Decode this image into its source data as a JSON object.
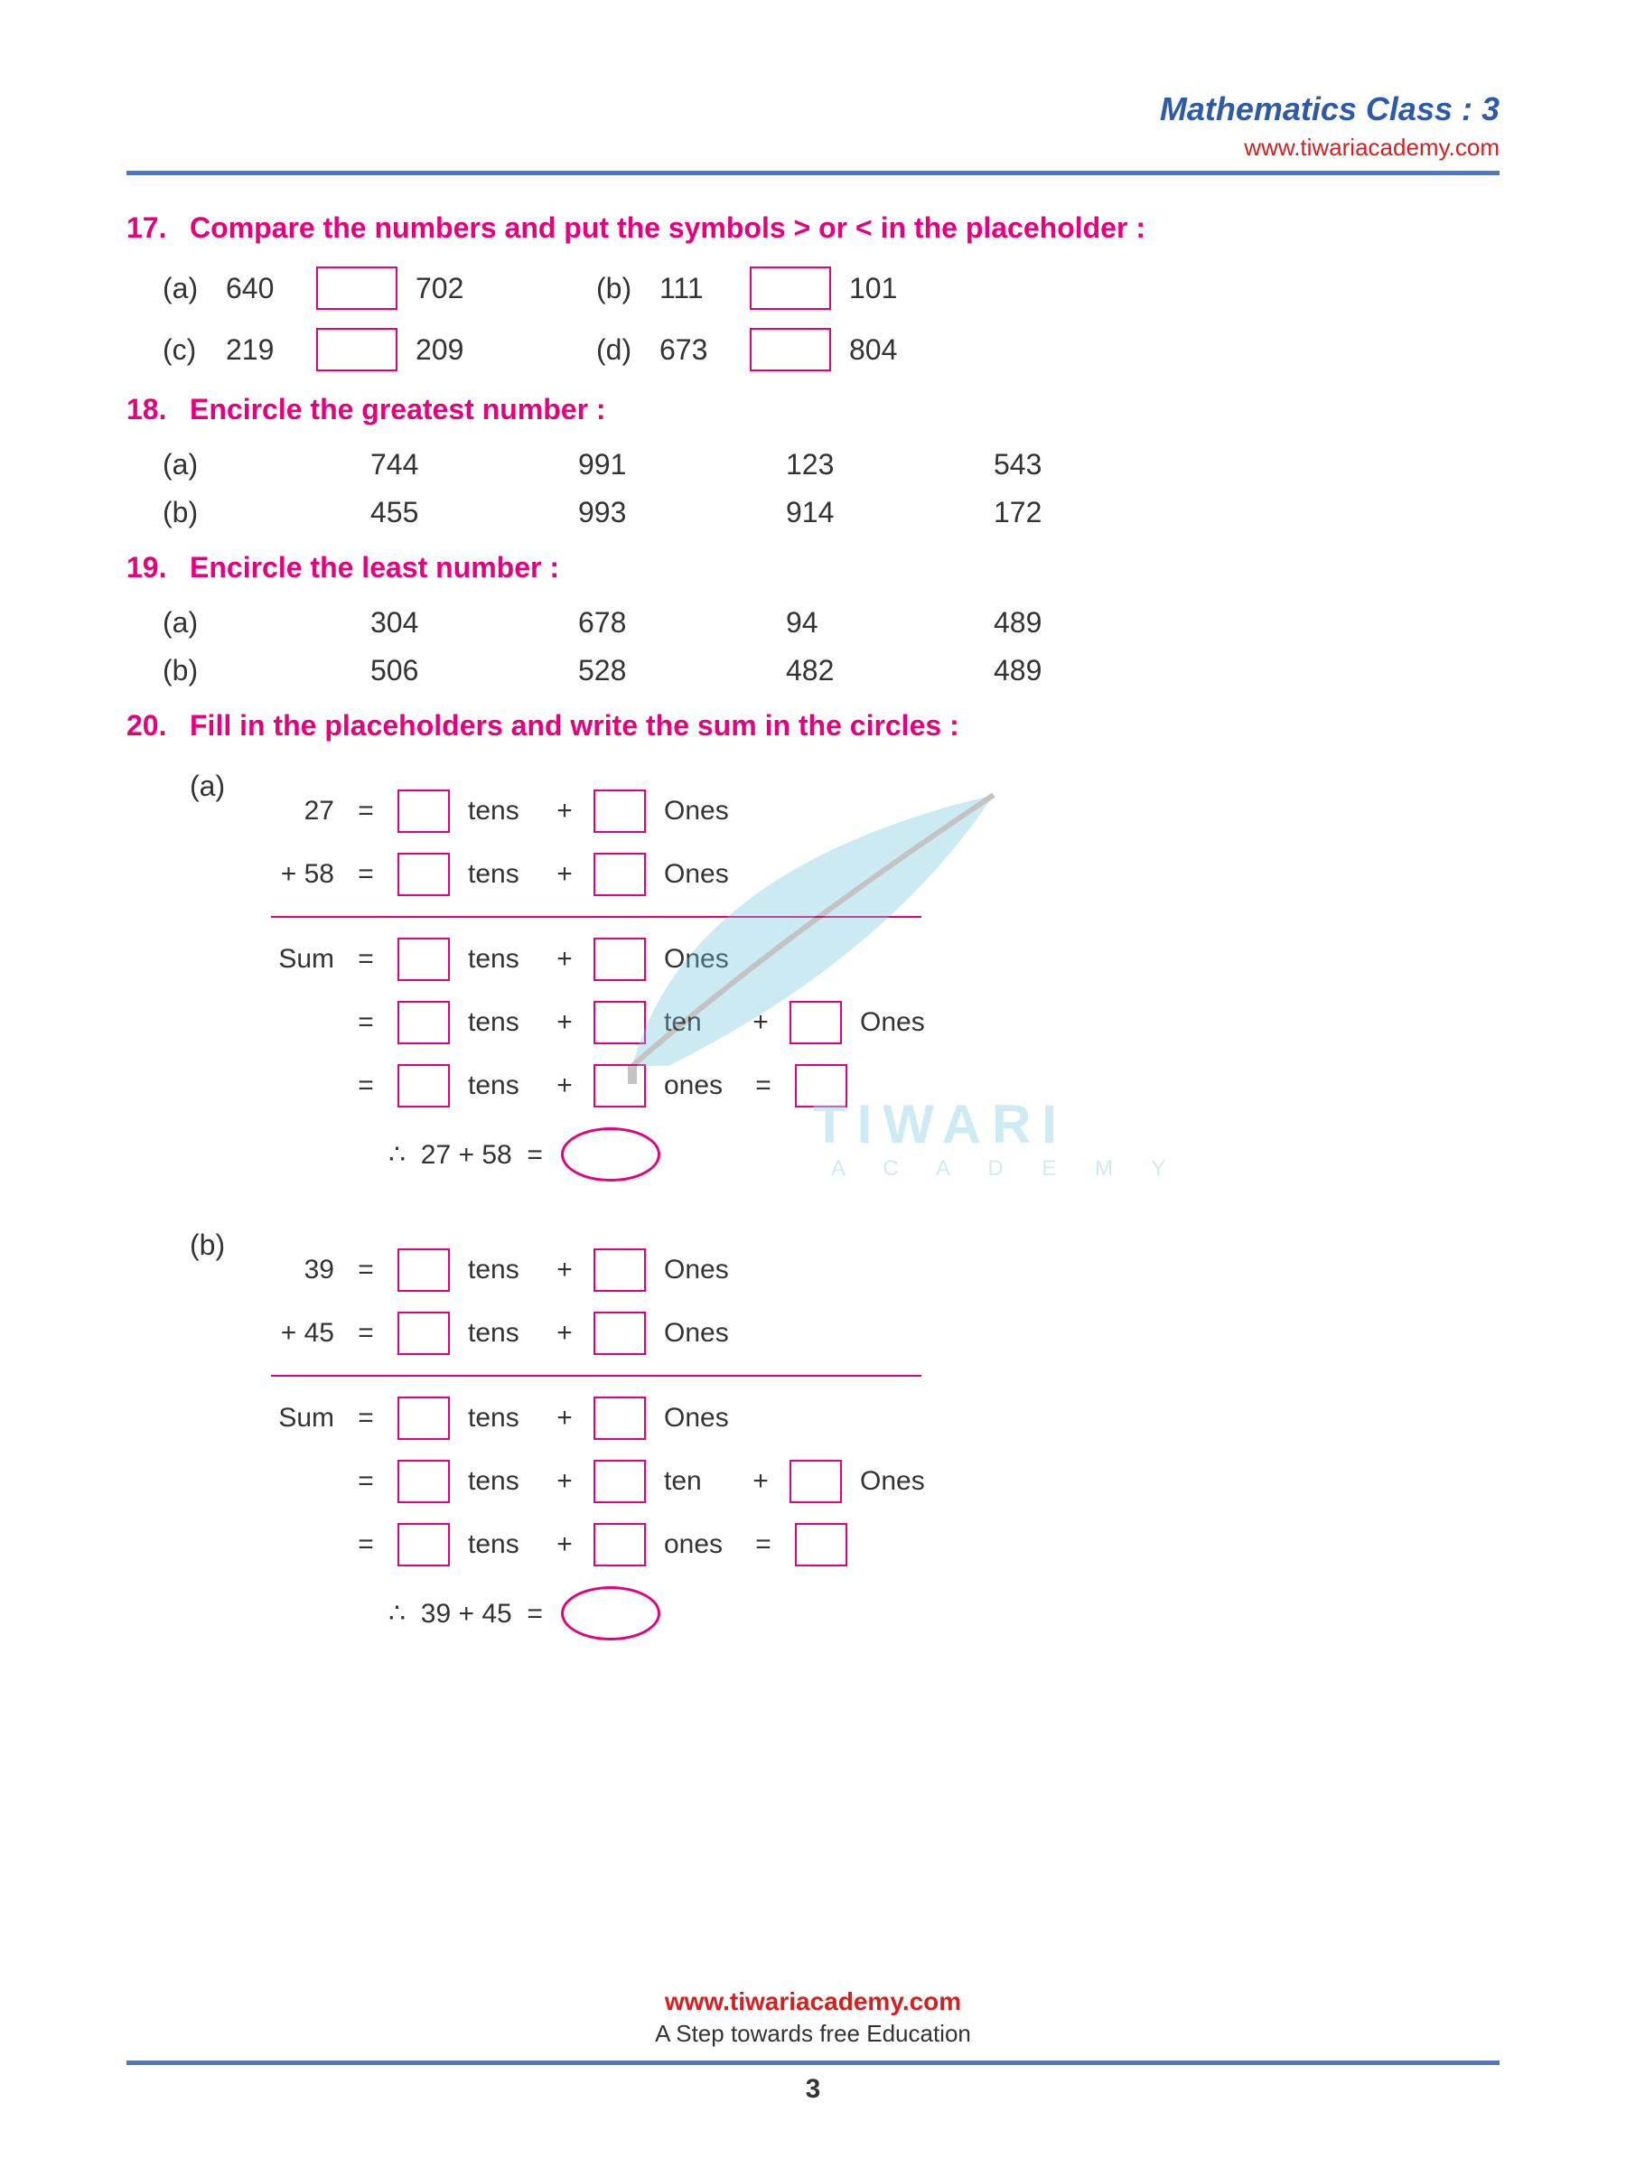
{
  "header": {
    "title": "Mathematics Class : 3",
    "link": "www.tiwariacademy.com"
  },
  "colors": {
    "accent": "#e6007e",
    "header_blue": "#2e5aa8",
    "rule_blue": "#4a7ac7",
    "red": "#d42020"
  },
  "q17": {
    "num": "17.",
    "title": "Compare the numbers and  put the symbols > or < in the placeholder :",
    "items": [
      {
        "label": "(a)",
        "n1": "640",
        "n2": "702"
      },
      {
        "label": "(b)",
        "n1": "111",
        "n2": "101"
      },
      {
        "label": "(c)",
        "n1": "219",
        "n2": "209"
      },
      {
        "label": "(d)",
        "n1": "673",
        "n2": "804"
      }
    ]
  },
  "q18": {
    "num": "18.",
    "title": "Encircle the greatest number :",
    "rows": [
      {
        "label": "(a)",
        "vals": [
          "744",
          "991",
          "123",
          "543"
        ]
      },
      {
        "label": "(b)",
        "vals": [
          "455",
          "993",
          "914",
          "172"
        ]
      }
    ]
  },
  "q19": {
    "num": "19.",
    "title": "Encircle the least number :",
    "rows": [
      {
        "label": "(a)",
        "vals": [
          "304",
          "678",
          "94",
          "489"
        ]
      },
      {
        "label": "(b)",
        "vals": [
          "506",
          "528",
          "482",
          "489"
        ]
      }
    ]
  },
  "q20": {
    "num": "20.",
    "title": "Fill in the placeholders and write the sum in the circles :",
    "parts": [
      {
        "label": "(a)",
        "n1": "27",
        "n2": "58",
        "op": "+",
        "sum_label": "Sum",
        "expr": "27 + 58"
      },
      {
        "label": "(b)",
        "n1": "39",
        "n2": "45",
        "op": "+",
        "sum_label": "Sum",
        "expr": "39 + 45"
      }
    ],
    "words": {
      "tens": "tens",
      "ones_cap": "Ones",
      "ten": "ten",
      "ones": "ones",
      "eq": "=",
      "plus": "+",
      "therefore": "∴"
    }
  },
  "watermark": {
    "brand": "TIWARI",
    "sub": "A C A D E M Y"
  },
  "footer": {
    "link": "www.tiwariacademy.com",
    "tag": "A Step towards free Education",
    "page": "3"
  }
}
